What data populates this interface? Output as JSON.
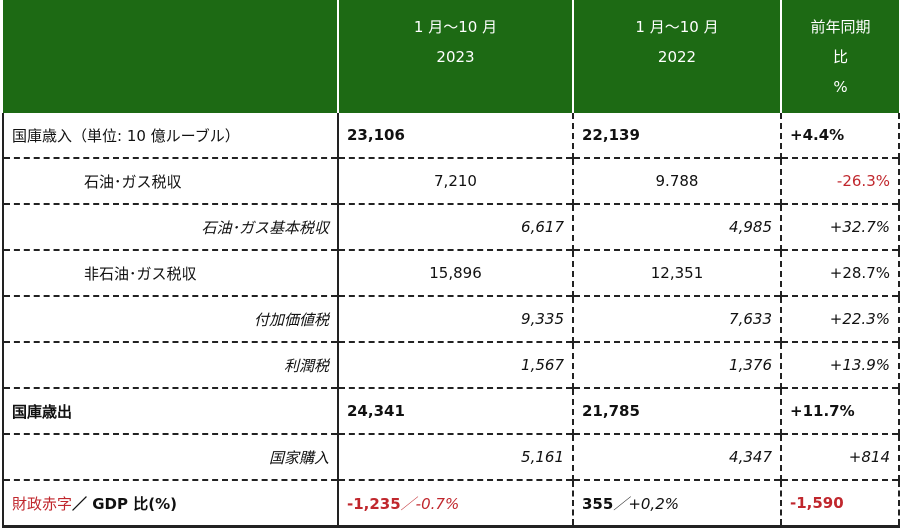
{
  "header": {
    "col1_line1": "1 月～10 月",
    "col1_line2": "2023",
    "col2_line1": "1 月～10 月",
    "col2_line2": "2022",
    "col3_line1": "前年同期",
    "col3_line2": "比",
    "col3_line3": "%"
  },
  "rows": [
    {
      "label": "国庫歳入（単位: 10 億ルーブル）",
      "v2023": "23,106",
      "v2022": "22,139",
      "change": "+4.4%"
    },
    {
      "label": "石油･ガス税収",
      "v2023": "7,210",
      "v2022": "9.788",
      "change": "-26.3%"
    },
    {
      "label": "石油･ガス基本税収",
      "v2023": "6,617",
      "v2022": "4,985",
      "change": "+32.7%"
    },
    {
      "label": "非石油･ガス税収",
      "v2023": "15,896",
      "v2022": "12,351",
      "change": "+28.7%"
    },
    {
      "label": "付加価値税",
      "v2023": "9,335",
      "v2022": "7,633",
      "change": "+22.3%"
    },
    {
      "label": "利潤税",
      "v2023": "1,567",
      "v2022": "1,376",
      "change": "+13.9%"
    },
    {
      "label": "国庫歳出",
      "v2023": "24,341",
      "v2022": "21,785",
      "change": "+11.7%"
    },
    {
      "label": "国家購入",
      "v2023": "5,161",
      "v2022": "4,347",
      "change": "+814"
    }
  ],
  "deficit": {
    "label_red": "財政赤字",
    "label_rest": "／ GDP 比(%)",
    "v2023_value": "-1,235",
    "v2023_ratio": "／-0.7%",
    "v2022_value": "355",
    "v2022_ratio": "／+0,2%",
    "change": "-1,590"
  },
  "colors": {
    "header_bg": "#1d6a14",
    "negative": "#c0272d"
  }
}
